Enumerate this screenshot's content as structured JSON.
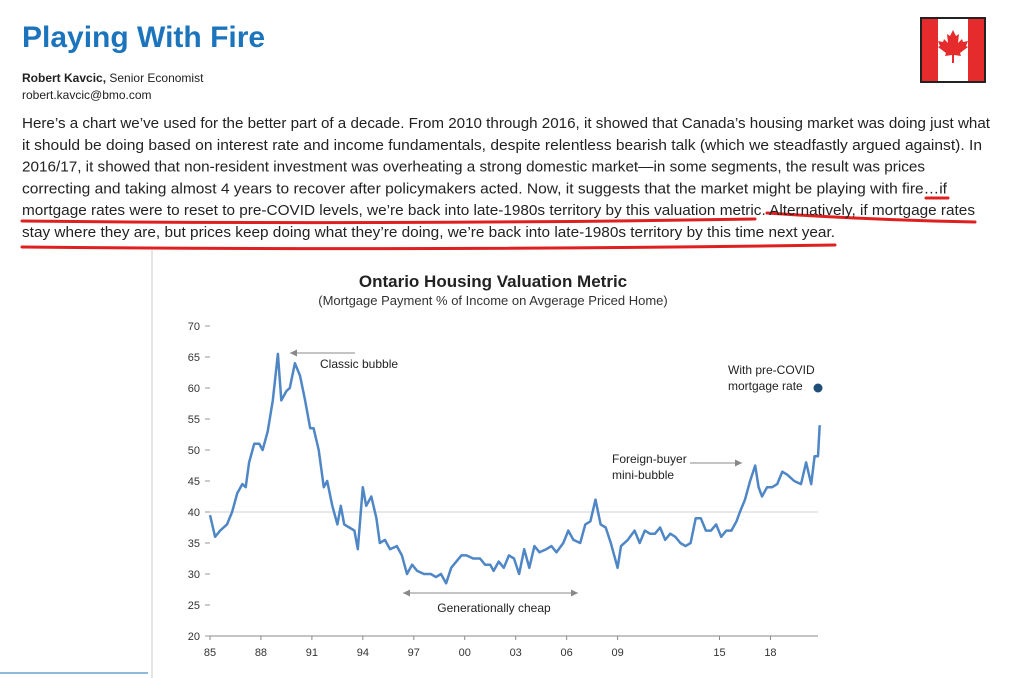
{
  "header": {
    "title": "Playing With Fire",
    "author_name": "Robert Kavcic,",
    "author_role": "Senior Economist",
    "email": "robert.kavcic@bmo.com"
  },
  "paragraph_lines": [
    "Here’s a chart we’ve used for the better part of a decade. From 2010 through 2016, it showed that Canada’s housing market was doing just what",
    "it should be doing based on interest rate and income fundamentals, despite relentless bearish talk (which we steadfastly argued against). In",
    "2016/17, it showed that non-resident investment was overheating a strong domestic market—in some segments, the result was prices",
    "correcting and taking almost 4 years to recover after policymakers acted. Now, it suggests that the market might be playing with fire…if",
    "mortgage rates were to reset to pre-COVID levels, we’re back into late-1980s territory by this valuation metric. Alternatively, if mortgage rates",
    "stay where they are, but prices keep doing what they’re doing, we’re back into late-1980s territory by this time next year."
  ],
  "chart_data": {
    "type": "line",
    "title": "Ontario Housing Valuation Metric",
    "subtitle": "(Mortgage Payment % of Income on Avgerage Priced Home)",
    "color": "#4f86c6",
    "x": [
      1985.0,
      1985.3,
      1985.6,
      1986.0,
      1986.3,
      1986.6,
      1986.9,
      1987.1,
      1987.3,
      1987.6,
      1987.9,
      1988.1,
      1988.4,
      1988.7,
      1989.0,
      1989.2,
      1989.5,
      1989.7,
      1990.0,
      1990.3,
      1990.6,
      1990.9,
      1991.1,
      1991.4,
      1991.7,
      1991.9,
      1992.2,
      1992.5,
      1992.7,
      1992.9,
      1993.2,
      1993.5,
      1993.7,
      1994.0,
      1994.2,
      1994.5,
      1994.8,
      1995.0,
      1995.3,
      1995.6,
      1996.0,
      1996.3,
      1996.6,
      1996.9,
      1997.2,
      1997.6,
      1998.0,
      1998.3,
      1998.6,
      1998.9,
      1999.2,
      1999.5,
      1999.8,
      2000.1,
      2000.5,
      2000.9,
      2001.2,
      2001.5,
      2001.7,
      2002.0,
      2002.3,
      2002.6,
      2002.9,
      2003.2,
      2003.5,
      2003.8,
      2004.1,
      2004.4,
      2004.8,
      2005.1,
      2005.4,
      2005.8,
      2006.1,
      2006.4,
      2006.8,
      2007.1,
      2007.4,
      2007.7,
      2008.0,
      2008.3,
      2008.6,
      2009.0,
      2009.2,
      2009.6,
      2010.0,
      2010.3,
      2010.6,
      2010.9,
      2011.2,
      2011.5,
      2011.8,
      2012.1,
      2012.4,
      2012.7,
      2013.0,
      2013.3,
      2013.6,
      2013.9,
      2014.2,
      2014.5,
      2014.8,
      2015.1,
      2015.4,
      2015.7,
      2016.0,
      2016.2,
      2016.5,
      2016.8,
      2017.1,
      2017.3,
      2017.5,
      2017.8,
      2018.1,
      2018.4,
      2018.7,
      2019.0,
      2019.4,
      2019.8,
      2020.1,
      2020.4,
      2020.6,
      2020.8,
      2020.9
    ],
    "values": [
      39.5,
      36,
      37,
      38,
      40,
      43,
      44.5,
      44,
      48,
      51,
      51,
      50,
      53,
      58,
      65.5,
      58,
      59.5,
      60,
      64,
      62,
      58,
      53.5,
      53.5,
      50,
      44,
      45,
      41,
      38,
      41,
      38,
      37.5,
      37,
      34,
      44,
      41,
      42.5,
      39,
      35,
      35.5,
      34,
      34.5,
      33,
      30,
      31.5,
      30.5,
      30,
      30,
      29.5,
      30,
      28.5,
      31,
      32,
      33,
      33,
      32.5,
      32.5,
      31.5,
      31.5,
      30.5,
      32,
      31,
      33,
      32.5,
      30,
      34,
      31,
      34.5,
      33.5,
      34,
      34.5,
      33.5,
      35,
      37,
      35.5,
      35,
      38,
      38.5,
      42,
      38,
      37.5,
      35,
      31,
      34.5,
      35.5,
      37,
      35,
      37,
      36.5,
      36.5,
      37.5,
      35.5,
      36.5,
      36,
      35,
      34.5,
      35,
      39,
      39,
      37,
      37,
      38,
      36,
      37,
      37,
      38.5,
      40,
      42,
      45,
      47.5,
      44,
      42.5,
      44,
      44,
      44.5,
      46.5,
      46,
      45,
      44.5,
      48,
      44.5,
      49,
      49,
      54
    ],
    "point": {
      "x": 2020.8,
      "y": 60,
      "color": "#1f4e79"
    },
    "reference_line": 40,
    "xlim": [
      1985,
      2020.8
    ],
    "xticks": [
      {
        "value": 1985,
        "label": "85"
      },
      {
        "value": 1988,
        "label": "88"
      },
      {
        "value": 1991,
        "label": "91"
      },
      {
        "value": 1994,
        "label": "94"
      },
      {
        "value": 1997,
        "label": "97"
      },
      {
        "value": 2000,
        "label": "00"
      },
      {
        "value": 2003,
        "label": "03"
      },
      {
        "value": 2006,
        "label": "06"
      },
      {
        "value": 2009,
        "label": "09"
      },
      {
        "value": 2015,
        "label": "15"
      },
      {
        "value": 2018,
        "label": "18"
      }
    ],
    "ylim": [
      20,
      70
    ],
    "yticks": [
      20,
      25,
      30,
      35,
      40,
      45,
      50,
      55,
      60,
      65,
      70
    ],
    "annotations": [
      {
        "lines": [
          "Classic bubble"
        ]
      },
      {
        "lines": [
          "Generationally cheap"
        ]
      },
      {
        "lines": [
          "Foreign-buyer",
          "mini-bubble"
        ]
      },
      {
        "lines": [
          "With pre-COVID",
          "mortgage rate"
        ]
      }
    ]
  }
}
